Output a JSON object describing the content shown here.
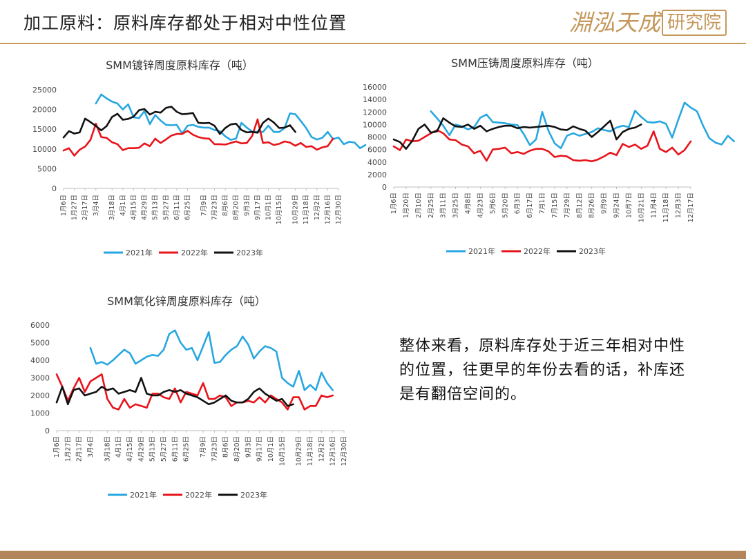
{
  "header": {
    "title": "加工原料：原料库存都处于相对中性位置",
    "brand_main": "淵泓天成",
    "brand_box": "研究院"
  },
  "summary_text": "整体来看，原料库存处于近三年相对中性的位置，往更早的年份去看的话，补库还是有翻倍空间的。",
  "colors": {
    "y2021": "#27a7e0",
    "y2022": "#e8141b",
    "y2023": "#111111",
    "accent": "#c79a5a"
  },
  "chart_data": [
    {
      "id": "galvanizing",
      "type": "line",
      "title": "SMM镀锌周度原料库存（吨）",
      "ylim": [
        0,
        25000
      ],
      "yticks": [
        0,
        5000,
        10000,
        15000,
        20000,
        25000
      ],
      "x_tick_labels": [
        "1月6日",
        "1月27日",
        "2月17日",
        "3月4日",
        "3月18日",
        "4月1日",
        "4月15日",
        "4月29日",
        "5月13日",
        "5月27日",
        "6月11日",
        "6月25日",
        "7月9日",
        "7月23日",
        "8月6日",
        "8月20日",
        "9月3日",
        "9月17日",
        "10月1日",
        "10月15日",
        "10月29日",
        "11月18日",
        "12月2日",
        "12月16日",
        "12月30日"
      ],
      "n_points": 52,
      "legend": [
        "2021年",
        "2022年",
        "2023年"
      ],
      "series": [
        {
          "name": "2021年",
          "start": 6,
          "values": [
            21500,
            23800,
            22800,
            22000,
            21500,
            20000,
            21300,
            18000,
            17800,
            19600,
            16300,
            18600,
            17200,
            16100,
            16000,
            16100,
            13900,
            15900,
            16100,
            15600,
            15400,
            15400,
            14800,
            14500,
            13200,
            12300,
            12600,
            16600,
            15400,
            14400,
            14300,
            14300,
            15900,
            14300,
            14300,
            15300,
            19000,
            18800,
            17100,
            15300,
            13000,
            12400,
            12800,
            14300,
            12500,
            12900,
            11200,
            11800,
            11600,
            10200,
            11000
          ]
        },
        {
          "name": "2022年",
          "start": 0,
          "values": [
            9600,
            10200,
            8300,
            9800,
            10600,
            12300,
            16400,
            13000,
            12800,
            11700,
            11200,
            9700,
            10200,
            10200,
            10300,
            11400,
            10700,
            12600,
            11500,
            12400,
            13400,
            13800,
            13800,
            14600,
            13600,
            13000,
            12700,
            12600,
            11200,
            11200,
            11100,
            11500,
            11900,
            11400,
            11500,
            13300,
            17500,
            11500,
            11700,
            11000,
            11300,
            11900,
            11600,
            10800,
            11500,
            10500,
            10700,
            9800,
            10400,
            10700,
            12600
          ]
        },
        {
          "name": "2023年",
          "start": 0,
          "values": [
            12900,
            14500,
            13900,
            14200,
            17700,
            16800,
            15800,
            14700,
            15800,
            18100,
            18900,
            17400,
            17600,
            18200,
            19800,
            20100,
            18700,
            19400,
            19200,
            20400,
            20700,
            19400,
            18800,
            18900,
            19100,
            16600,
            16500,
            16600,
            15900,
            13800,
            15300,
            16200,
            16400,
            14800,
            14200,
            14300,
            14100,
            16600,
            17700,
            16700,
            15300,
            15400,
            16000,
            14300
          ]
        }
      ]
    },
    {
      "id": "diecasting",
      "type": "line",
      "title": "SMM压铸周度原料库存（吨）",
      "ylim": [
        0,
        16000
      ],
      "yticks": [
        0,
        2000,
        4000,
        6000,
        8000,
        10000,
        12000,
        14000,
        16000
      ],
      "x_tick_labels": [
        "1月6日",
        "1月20日",
        "2月10日",
        "2月25日",
        "3月11日",
        "3月25日",
        "4月8日",
        "4月23日",
        "5月6日",
        "5月20日",
        "6月3日",
        "6月17日",
        "7月1日",
        "7月15日",
        "7月29日",
        "8月12日",
        "8月26日",
        "9月9日",
        "9月24日",
        "10月7日",
        "10月21日",
        "11月4日",
        "11月18日",
        "12月3日",
        "12月17日"
      ],
      "n_points": 49,
      "legend": [
        "2021年",
        "2022年",
        "2023年"
      ],
      "series": [
        {
          "name": "2021年",
          "start": 6,
          "values": [
            12100,
            11000,
            9800,
            8300,
            10000,
            9700,
            9200,
            9600,
            11100,
            11600,
            10400,
            10300,
            10200,
            10000,
            9900,
            8500,
            6700,
            7600,
            12000,
            9000,
            7000,
            6200,
            8200,
            8600,
            8200,
            8500,
            8800,
            9400,
            9100,
            8900,
            9500,
            9800,
            9600,
            12200,
            11200,
            10400,
            10300,
            10500,
            10100,
            7900,
            10800,
            13500,
            12700,
            12100,
            9800,
            7800,
            7100,
            6800,
            8200,
            7300
          ]
        },
        {
          "name": "2022年",
          "start": 0,
          "values": [
            6500,
            5900,
            7600,
            7300,
            7400,
            8000,
            8600,
            9100,
            8600,
            7600,
            7500,
            6800,
            6500,
            5400,
            5800,
            4200,
            6000,
            6100,
            6300,
            5400,
            5600,
            5300,
            5800,
            6100,
            6100,
            5700,
            4800,
            5000,
            4900,
            4300,
            4200,
            4300,
            4100,
            4400,
            4900,
            5500,
            5100,
            6900,
            6400,
            6800,
            6100,
            6600,
            8900,
            6100,
            5600,
            6300,
            5200,
            5900,
            7300
          ]
        },
        {
          "name": "2023年",
          "start": 0,
          "values": [
            7600,
            7200,
            6100,
            7400,
            9300,
            10000,
            8700,
            8900,
            11000,
            10300,
            9700,
            9600,
            10000,
            9300,
            9800,
            8900,
            9300,
            9600,
            9800,
            9800,
            9400,
            9600,
            9500,
            9600,
            9700,
            9800,
            9600,
            9200,
            9100,
            9700,
            9300,
            9000,
            8000,
            8800,
            9700,
            10600,
            7600,
            8800,
            9300,
            9500,
            10000
          ]
        }
      ]
    },
    {
      "id": "zinc-oxide",
      "type": "line",
      "title": "SMM氧化锌周度原料库存（吨）",
      "ylim": [
        0,
        6000
      ],
      "yticks": [
        0,
        1000,
        2000,
        3000,
        4000,
        5000,
        6000
      ],
      "x_tick_labels": [
        "1月6日",
        "1月27日",
        "2月17日",
        "3月4日",
        "3月18日",
        "4月1日",
        "4月15日",
        "4月29日",
        "5月13日",
        "5月27日",
        "6月11日",
        "6月25日",
        "7月9日",
        "7月23日",
        "8月6日",
        "8月20日",
        "9月3日",
        "9月17日",
        "10月1日",
        "10月15日",
        "10月29日",
        "11月18日",
        "12月2日",
        "12月16日",
        "12月30日"
      ],
      "n_points": 52,
      "legend": [
        "2021年",
        "2022年",
        "2023年"
      ],
      "series": [
        {
          "name": "2021年",
          "start": 6,
          "values": [
            4700,
            3800,
            3900,
            3750,
            4000,
            4300,
            4600,
            4400,
            3800,
            4000,
            4200,
            4300,
            4250,
            4600,
            5500,
            5700,
            5000,
            4600,
            4700,
            4000,
            4800,
            5600,
            3850,
            3900,
            4300,
            4600,
            4800,
            5350,
            4900,
            4100,
            4500,
            4800,
            4700,
            4500,
            3000,
            2700,
            2500,
            3400,
            2300,
            2600,
            2300,
            3300,
            2700,
            2300
          ]
        },
        {
          "name": "2022年",
          "start": 0,
          "values": [
            3200,
            2500,
            1700,
            2400,
            3000,
            2200,
            2800,
            3000,
            3200,
            1800,
            1300,
            1200,
            1800,
            1300,
            1500,
            1400,
            1300,
            2100,
            2100,
            1900,
            1800,
            2400,
            1600,
            2200,
            2100,
            2000,
            2700,
            1800,
            1800,
            2000,
            1900,
            1400,
            1600,
            1600,
            1700,
            1600,
            1900,
            1600,
            2000,
            1800,
            1600,
            1200,
            1900,
            1900,
            1200,
            1400,
            1400,
            2000,
            1900,
            2000
          ]
        },
        {
          "name": "2023年",
          "start": 0,
          "values": [
            1600,
            2500,
            1500,
            2300,
            2400,
            2000,
            2100,
            2200,
            2500,
            2300,
            2400,
            2100,
            2200,
            2300,
            2200,
            3000,
            2100,
            2000,
            2000,
            2200,
            2300,
            2200,
            2300,
            2100,
            2000,
            1900,
            1700,
            1500,
            1600,
            1800,
            2000,
            1700,
            1600,
            1600,
            1800,
            2200,
            2400,
            2100,
            1900,
            1700,
            1800,
            1400,
            1500
          ]
        }
      ]
    }
  ]
}
